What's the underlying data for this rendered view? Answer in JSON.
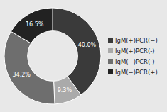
{
  "chart_data": {
    "type": "pie",
    "categories": [
      "IgM(+)PCR(−)",
      "IgM(+)PCR(-)",
      "IgM(−)PCR(-)",
      "IgM(−)PCR(+)"
    ],
    "values": [
      40.0,
      9.3,
      34.2,
      16.5
    ],
    "value_labels": [
      "40.0%",
      "9.3%",
      "34.2%",
      "16.5%"
    ],
    "colors": [
      "#3a3a3a",
      "#aaaaaa",
      "#6e6e6e",
      "#222222"
    ],
    "data_labels": true,
    "legend": "right"
  }
}
